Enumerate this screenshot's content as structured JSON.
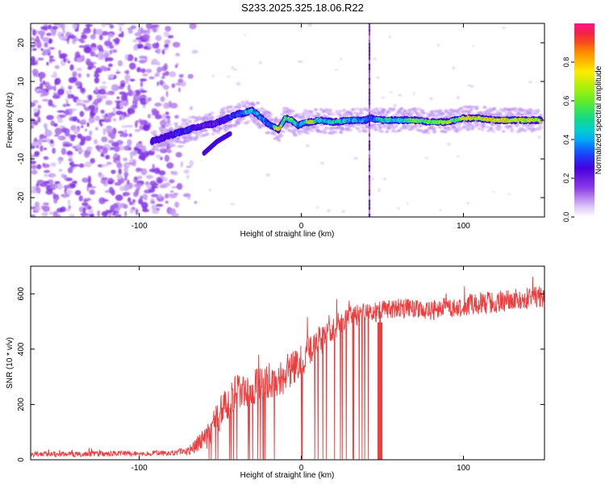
{
  "title": "S233.2025.325.18.06.R22",
  "top_panel": {
    "xlabel": "Height of straight line (km)",
    "ylabel": "Frequency (Hz)",
    "colorbar_label": "Normalized spectral amplitude"
  },
  "bottom_panel": {
    "xlabel": "Height of straight line (km)",
    "ylabel": "SNR (10 * v/v)"
  },
  "chart_data": [
    {
      "type": "heatmap",
      "title": "S233.2025.325.18.06.R22",
      "xlabel": "Height of straight line (km)",
      "ylabel": "Frequency (Hz)",
      "xlim": [
        -167,
        150
      ],
      "ylim": [
        -25,
        25
      ],
      "xticks": [
        {
          "v": -100,
          "t": "-100"
        },
        {
          "v": 0,
          "t": "0"
        },
        {
          "v": 100,
          "t": "100"
        }
      ],
      "yticks": [
        {
          "v": -20,
          "t": "-20"
        },
        {
          "v": -10,
          "t": "-10"
        },
        {
          "v": 0,
          "t": "0"
        },
        {
          "v": 10,
          "t": "10"
        },
        {
          "v": 20,
          "t": "20"
        }
      ],
      "colorbar": {
        "label": "Normalized spectral amplitude",
        "range": [
          0,
          1
        ],
        "ticks": [
          {
            "v": 0.0,
            "t": "0.0"
          },
          {
            "v": 0.2,
            "t": "0.2"
          },
          {
            "v": 0.4,
            "t": "0.4"
          },
          {
            "v": 0.6,
            "t": "0.6"
          },
          {
            "v": 0.8,
            "t": "0.8"
          }
        ]
      },
      "noise_region": {
        "x_from": -167,
        "x_to": -65,
        "amplitude": [
          0.05,
          0.18
        ]
      },
      "ridge": {
        "x": [
          -92,
          -85,
          -78,
          -70,
          -62,
          -55,
          -48,
          -40,
          -34,
          -30,
          -26,
          -22,
          -18,
          -14,
          -10,
          -6,
          -2,
          2,
          6,
          10,
          20,
          30,
          40,
          42,
          50,
          60,
          70,
          80,
          90,
          95,
          100,
          110,
          120,
          130,
          140,
          148
        ],
        "y": [
          -5.5,
          -4.5,
          -3.5,
          -2.5,
          -1.5,
          -1.0,
          0.0,
          1.5,
          2.0,
          2.5,
          1.0,
          -0.5,
          -1.5,
          -2.5,
          0.5,
          0.0,
          -1.5,
          -0.5,
          -0.5,
          0.0,
          -0.5,
          0.0,
          0.0,
          0.5,
          0.0,
          0.0,
          0.0,
          -0.5,
          -0.5,
          0.0,
          0.5,
          0.5,
          0.0,
          0.0,
          0.0,
          0.0
        ],
        "amplitude": [
          0.35,
          0.3,
          0.35,
          0.4,
          0.3,
          0.3,
          0.35,
          0.45,
          0.5,
          0.55,
          0.5,
          0.45,
          0.5,
          0.9,
          0.6,
          0.7,
          0.5,
          0.6,
          0.95,
          0.55,
          0.6,
          0.55,
          0.5,
          0.4,
          0.6,
          0.55,
          0.8,
          0.7,
          0.9,
          0.6,
          0.9,
          0.9,
          0.9,
          0.9,
          0.85,
          0.8
        ]
      },
      "secondary_branch": {
        "x": [
          -60,
          -52,
          -44
        ],
        "y": [
          -8.5,
          -5.5,
          -3.5
        ],
        "amplitude": [
          0.35,
          0.3,
          0.3
        ]
      },
      "vertical_artifact": {
        "x": 42,
        "amplitude": 0.25
      }
    },
    {
      "type": "line",
      "xlabel": "Height of straight line (km)",
      "ylabel": "SNR (10 * v/v)",
      "xlim": [
        -167,
        150
      ],
      "ylim": [
        0,
        700
      ],
      "xticks": [
        {
          "v": -100,
          "t": "-100"
        },
        {
          "v": 0,
          "t": "0"
        },
        {
          "v": 100,
          "t": "100"
        }
      ],
      "yticks": [
        {
          "v": 0,
          "t": "0"
        },
        {
          "v": 200,
          "t": "200"
        },
        {
          "v": 400,
          "t": "400"
        },
        {
          "v": 600,
          "t": "600"
        }
      ],
      "series": [
        {
          "name": "SNR",
          "color": "#f03c3c",
          "envelope": {
            "x": [
              -167,
              -140,
              -120,
              -100,
              -80,
              -70,
              -60,
              -50,
              -40,
              -30,
              -20,
              -10,
              0,
              10,
              20,
              30,
              40,
              50,
              60,
              80,
              100,
              120,
              140,
              150
            ],
            "y": [
              20,
              20,
              22,
              22,
              25,
              30,
              70,
              170,
              250,
              260,
              280,
              300,
              360,
              420,
              480,
              520,
              530,
              540,
              550,
              540,
              560,
              570,
              585,
              590
            ]
          },
          "noise_amplitude": [
            10,
            10,
            10,
            10,
            10,
            15,
            45,
            60,
            60,
            70,
            70,
            60,
            60,
            60,
            45,
            40,
            40,
            35,
            35,
            35,
            40,
            40,
            40,
            40
          ],
          "dropouts": [
            {
              "from": -60,
              "to": -48,
              "rate": 0.25
            },
            {
              "from": -48,
              "to": -20,
              "rate": 0.4
            },
            {
              "from": -20,
              "to": 50,
              "rate": 0.3
            }
          ],
          "filled_dropout": {
            "from": 47,
            "to": 50
          }
        }
      ]
    }
  ]
}
